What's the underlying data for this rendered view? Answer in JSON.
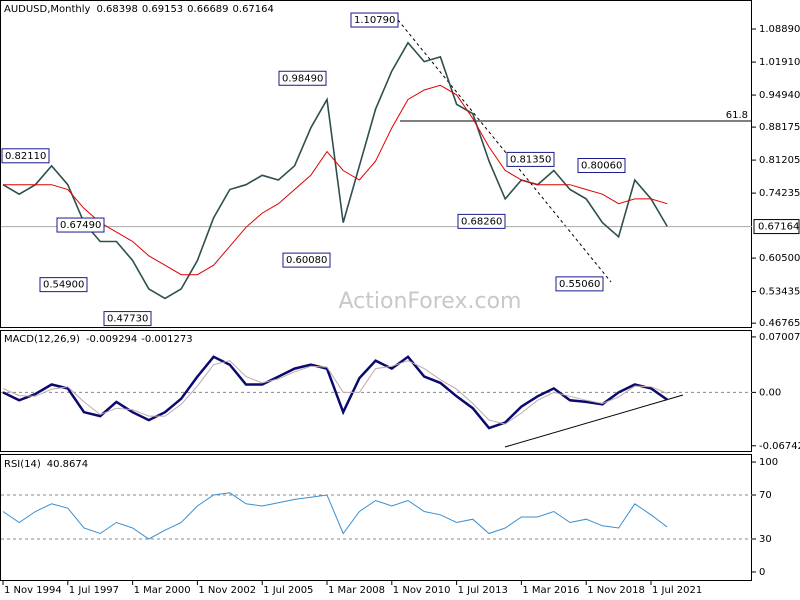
{
  "chart_data": [
    {
      "type": "line",
      "title": "AUDUSD,Monthly",
      "header_values": [
        0.68398,
        0.69153,
        0.66689,
        0.67164
      ],
      "watermark": "ActionForex.com",
      "categories": [
        "1 Nov 1994",
        null,
        null,
        null,
        "1 Jul 1997",
        null,
        null,
        null,
        "1 Mar 2000",
        null,
        null,
        null,
        "1 Nov 2002",
        null,
        null,
        null,
        "1 Jul 2005",
        null,
        null,
        null,
        "1 Mar 2008",
        null,
        null,
        null,
        "1 Nov 2010",
        null,
        null,
        null,
        "1 Jul 2013",
        null,
        null,
        null,
        "1 Mar 2016",
        null,
        null,
        null,
        "1 Nov 2018",
        null,
        null,
        null,
        "1 Jul 2021",
        null
      ],
      "series": [
        {
          "color": "#2f4f4f",
          "values": [
            0.76,
            0.74,
            0.76,
            0.8,
            0.76,
            0.68,
            0.64,
            0.64,
            0.6,
            0.54,
            0.52,
            0.54,
            0.6,
            0.69,
            0.75,
            0.76,
            0.78,
            0.77,
            0.8,
            0.88,
            0.94,
            0.68,
            0.8,
            0.92,
            1.0,
            1.06,
            1.02,
            1.03,
            0.93,
            0.91,
            0.81,
            0.73,
            0.77,
            0.76,
            0.79,
            0.75,
            0.73,
            0.68,
            0.65,
            0.77,
            0.73,
            0.672
          ]
        },
        {
          "color": "#e00000",
          "values": [
            0.76,
            0.76,
            0.76,
            0.76,
            0.75,
            0.71,
            0.68,
            0.66,
            0.64,
            0.61,
            0.59,
            0.57,
            0.57,
            0.59,
            0.63,
            0.67,
            0.7,
            0.72,
            0.75,
            0.78,
            0.83,
            0.79,
            0.77,
            0.81,
            0.88,
            0.94,
            0.96,
            0.97,
            0.95,
            0.9,
            0.84,
            0.79,
            0.77,
            0.76,
            0.76,
            0.76,
            0.75,
            0.74,
            0.72,
            0.73,
            0.73,
            0.72
          ]
        }
      ],
      "ylim": [
        0.4574,
        1.1502
      ],
      "yticks": [
        {
          "value": 1.0889,
          "label": "1.08890"
        },
        {
          "value": 1.0191,
          "label": "1.01910"
        },
        {
          "value": 0.9494,
          "label": "0.94940"
        },
        0.88175,
        0.81205,
        0.74235,
        {
          "value": 0.605,
          "label": "0.60500"
        },
        0.53435,
        0.46765
      ],
      "current": 0.67164,
      "fib_level": {
        "label": "61.8",
        "value": 0.8945
      },
      "annotations": [
        {
          "value": 1.1079,
          "label": "1.10790"
        },
        {
          "value": 0.9849,
          "label": "0.98490"
        },
        {
          "value": 0.8211,
          "label": "0.82110"
        },
        {
          "value": 0.6749,
          "label": "0.67490"
        },
        {
          "value": 0.549,
          "label": "0.54900"
        },
        {
          "value": 0.4773,
          "label": "0.47730"
        },
        {
          "value": 0.6008,
          "label": "0.60080"
        },
        {
          "value": 0.6826,
          "label": "0.68260"
        },
        {
          "value": 0.8135,
          "label": "0.81350"
        },
        {
          "value": 0.8006,
          "label": "0.80060"
        },
        {
          "value": 0.5506,
          "label": "0.55060"
        }
      ]
    },
    {
      "type": "line",
      "title": "MACD(12,26,9)",
      "header_values": [
        -0.009294,
        -0.001273
      ],
      "series": [
        {
          "color": "#0a0a6e",
          "values": [
            0.0,
            -0.01,
            -0.002,
            0.01,
            0.005,
            -0.025,
            -0.03,
            -0.012,
            -0.025,
            -0.035,
            -0.025,
            -0.008,
            0.02,
            0.045,
            0.035,
            0.01,
            0.01,
            0.02,
            0.03,
            0.035,
            0.03,
            -0.025,
            0.018,
            0.04,
            0.03,
            0.045,
            0.02,
            0.012,
            -0.005,
            -0.02,
            -0.045,
            -0.038,
            -0.018,
            -0.005,
            0.005,
            -0.01,
            -0.012,
            -0.015,
            0.0,
            0.01,
            0.005,
            -0.0093
          ]
        },
        {
          "color": "#c0a8b0",
          "values": [
            0.005,
            -0.004,
            -0.005,
            0.004,
            0.007,
            -0.012,
            -0.028,
            -0.02,
            -0.022,
            -0.03,
            -0.03,
            -0.015,
            0.008,
            0.035,
            0.04,
            0.02,
            0.012,
            0.017,
            0.026,
            0.033,
            0.032,
            0.0,
            0.0,
            0.03,
            0.033,
            0.04,
            0.03,
            0.016,
            0.004,
            -0.014,
            -0.035,
            -0.04,
            -0.026,
            -0.01,
            0.0,
            -0.005,
            -0.01,
            -0.014,
            -0.006,
            0.008,
            0.007,
            -0.0013
          ]
        }
      ],
      "ylim": [
        -0.0753,
        0.0788
      ],
      "yticks": [
        0.070071,
        {
          "value": 0,
          "label": "0.00"
        },
        -0.067423
      ],
      "levels": [
        0
      ]
    },
    {
      "type": "line",
      "title": "RSI(14)",
      "header_values": [
        40.8674
      ],
      "series": [
        {
          "color": "#3a8fd0",
          "values": [
            55,
            45,
            55,
            62,
            58,
            40,
            35,
            45,
            40,
            30,
            38,
            45,
            60,
            70,
            72,
            62,
            60,
            63,
            66,
            68,
            70,
            35,
            55,
            65,
            60,
            65,
            55,
            52,
            45,
            48,
            35,
            40,
            50,
            50,
            55,
            45,
            48,
            42,
            40,
            62,
            52,
            40.87
          ]
        }
      ],
      "ylim": [
        -7.3,
        106.4
      ],
      "yticks": [
        100,
        70,
        30,
        0
      ],
      "levels": [
        70,
        30
      ]
    }
  ]
}
